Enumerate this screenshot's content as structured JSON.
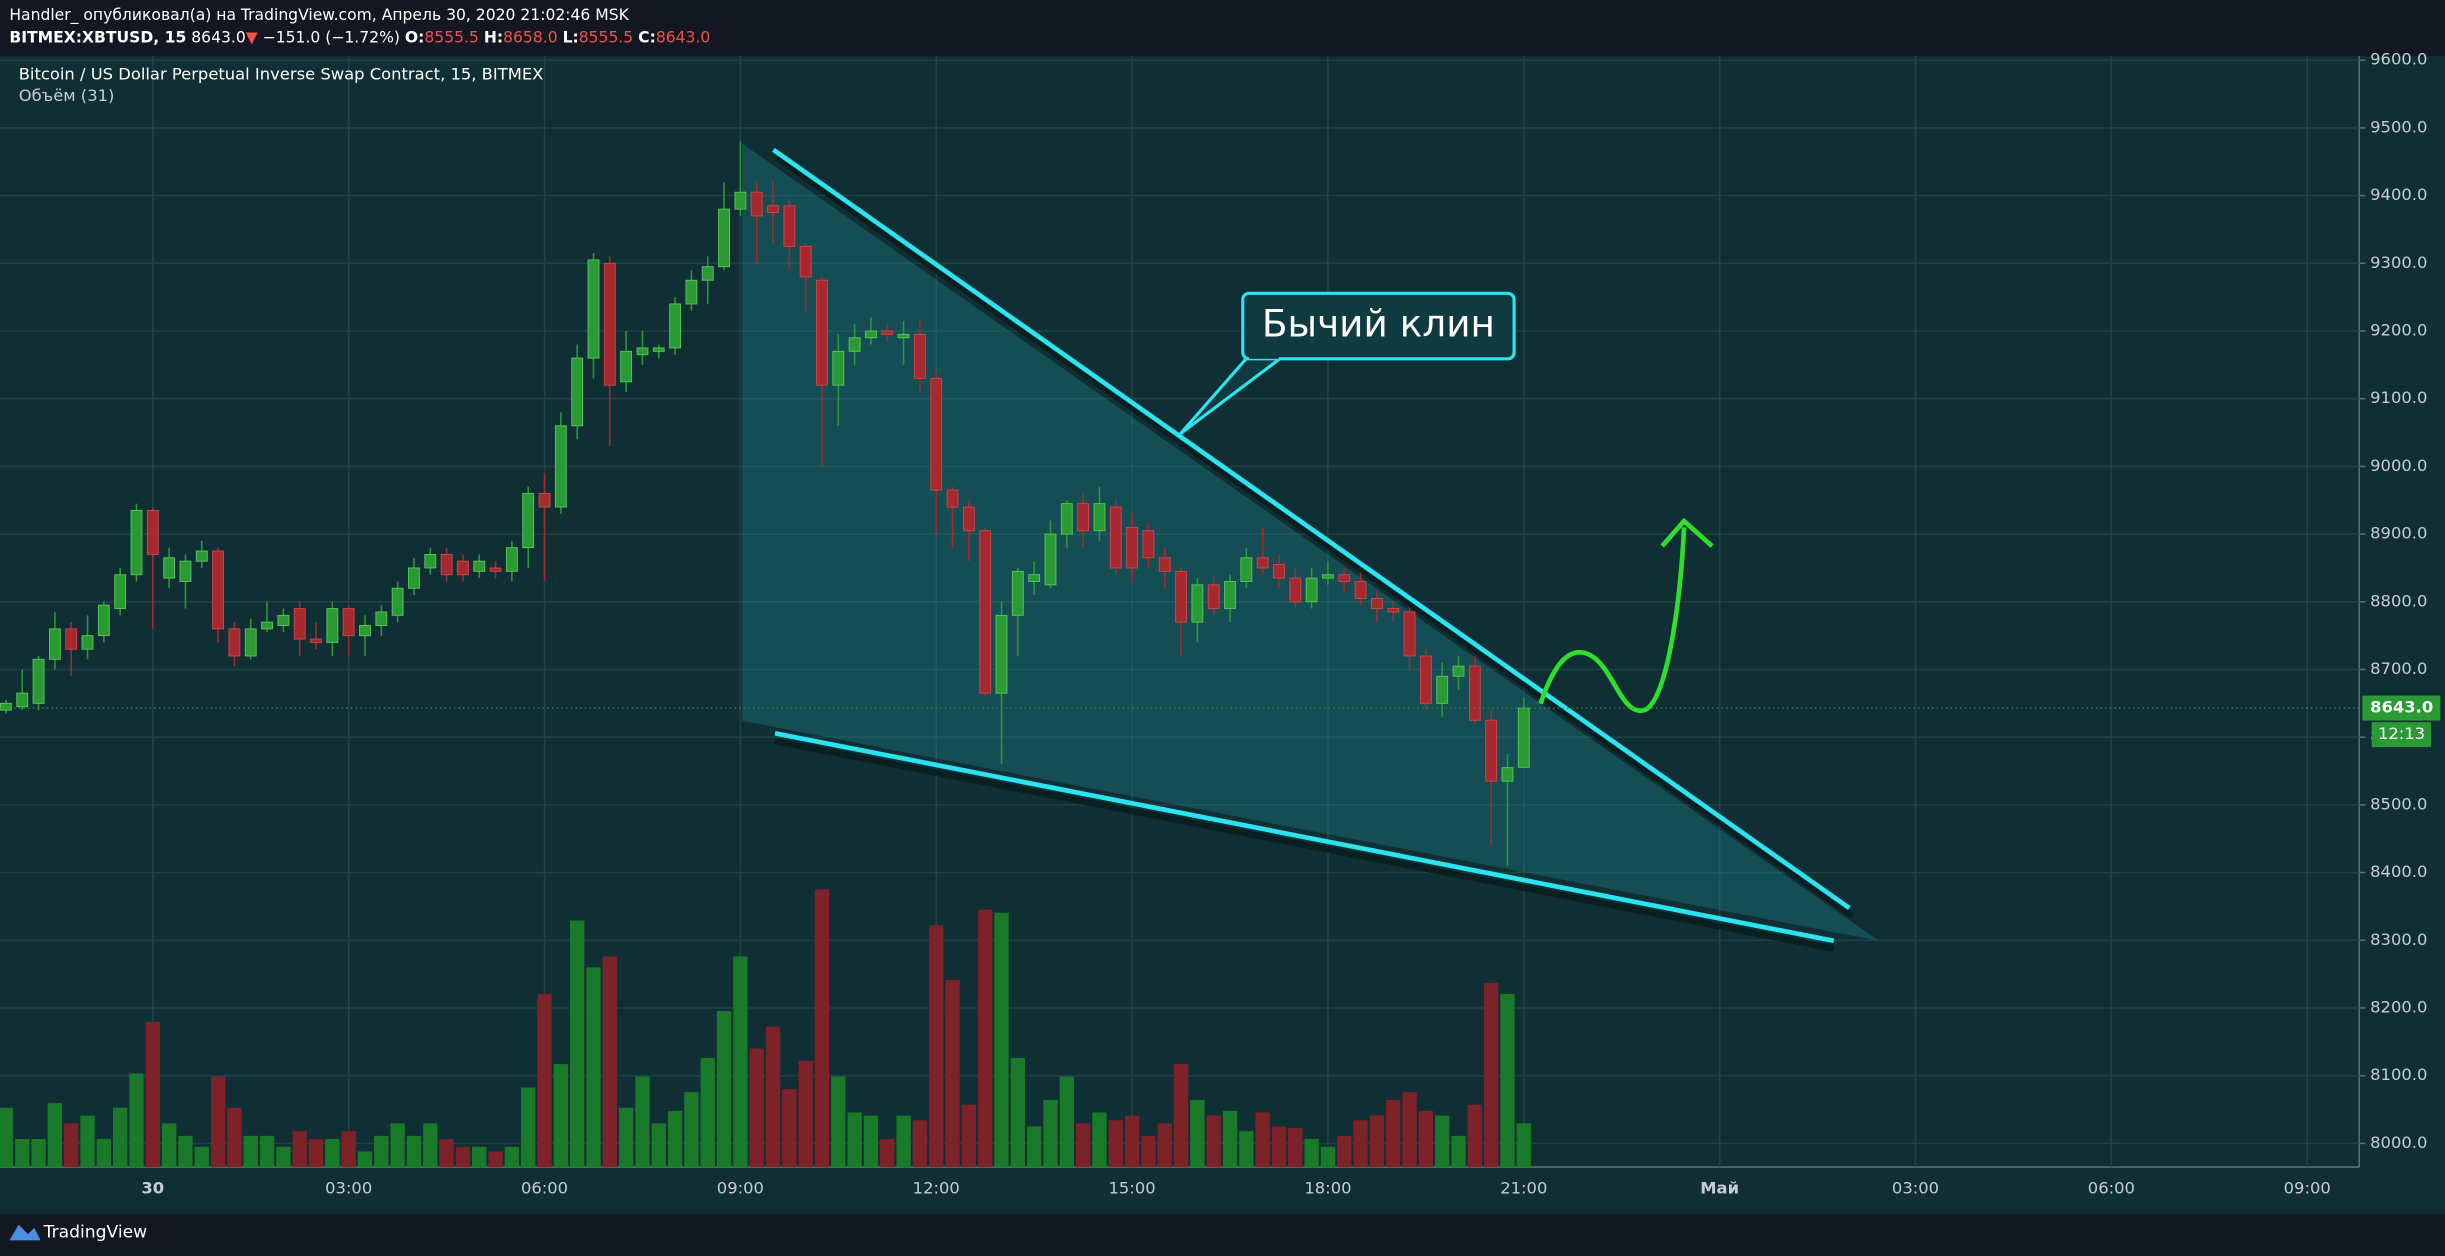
{
  "header": {
    "author_line": "Handler_ опубликовал(а) на TradingView.com, Апрель 30, 2020 21:02:46 MSK",
    "symbol": "BITMEX:XBTUSD, 15",
    "last": "8643.0",
    "direction": "▼",
    "change": "−151.0 (−1.72%)",
    "ohlc": [
      {
        "label": "O:",
        "value": "8555.5"
      },
      {
        "label": "H:",
        "value": "8658.0"
      },
      {
        "label": "L:",
        "value": "8555.5"
      },
      {
        "label": "C:",
        "value": "8643.0"
      }
    ]
  },
  "chart_data": {
    "type": "candlestick",
    "title": "Bitcoin / US Dollar Perpetual Inverse Swap Contract, 15, BITMEX",
    "subtitle": "Объём (31)",
    "annotation": "Бычий клин",
    "categories": [
      null,
      null,
      null,
      null,
      null,
      null,
      null,
      null,
      null,
      "30",
      null,
      null,
      null,
      null,
      null,
      null,
      null,
      null,
      null,
      null,
      null,
      "03:00",
      null,
      null,
      null,
      null,
      null,
      null,
      null,
      null,
      null,
      null,
      null,
      "06:00",
      null,
      null,
      null,
      null,
      null,
      null,
      null,
      null,
      null,
      null,
      null,
      "09:00",
      null,
      null,
      null,
      null,
      null,
      null,
      null,
      null,
      null,
      null,
      null,
      "12:00",
      null,
      null,
      null,
      null,
      null,
      null,
      null,
      null,
      null,
      null,
      null,
      "15:00",
      null,
      null,
      null,
      null,
      null,
      null,
      null,
      null,
      null,
      null,
      null,
      "18:00",
      null,
      null,
      null,
      null,
      null,
      null,
      null,
      null,
      null,
      null,
      null,
      "21:00",
      null,
      null,
      null,
      null,
      null,
      null,
      null,
      null,
      null,
      null,
      null,
      "Май",
      null,
      null,
      null,
      null,
      null,
      null,
      null,
      null,
      null,
      null,
      null,
      "03:00",
      null,
      null,
      null,
      null,
      null,
      null,
      null,
      null,
      null,
      null,
      null,
      "06:00",
      null,
      null,
      null,
      null,
      null,
      null,
      null,
      null,
      null,
      null,
      null,
      "09:00",
      null,
      null,
      null
    ],
    "open": [
      8640,
      8645,
      8650,
      8715,
      8760,
      8730,
      8750,
      8790,
      8840,
      8935,
      8835,
      8830,
      8860,
      8875,
      8760,
      8720,
      8760,
      8765,
      8790,
      8745,
      8740,
      8790,
      8750,
      8765,
      8780,
      8820,
      8850,
      8870,
      8860,
      8845,
      8850,
      8845,
      8880,
      8960,
      8940,
      9060,
      9160,
      9300,
      9125,
      9165,
      9170,
      9175,
      9240,
      9275,
      9295,
      9380,
      9405,
      9385,
      9385,
      9325,
      9275,
      9120,
      9170,
      9190,
      9200,
      9190,
      9195,
      9130,
      8965,
      8940,
      8905,
      8665,
      8780,
      8830,
      8825,
      8900,
      8945,
      8905,
      8940,
      8910,
      8905,
      8865,
      8845,
      8770,
      8825,
      8790,
      8830,
      8865,
      8855,
      8835,
      8800,
      8835,
      8840,
      8830,
      8805,
      8790,
      8785,
      8720,
      8650,
      8690,
      8705,
      8625,
      8535,
      8555.5,
      null,
      null,
      null,
      null,
      null,
      null,
      null,
      null,
      null,
      null,
      null,
      null,
      null,
      null,
      null,
      null,
      null,
      null,
      null,
      null,
      null,
      null,
      null,
      null,
      null,
      null,
      null,
      null,
      null,
      null,
      null,
      null,
      null,
      null,
      null,
      null,
      null,
      null,
      null,
      null,
      null,
      null,
      null,
      null,
      null,
      null,
      null,
      null,
      null,
      null,
      null
    ],
    "high": [
      8655,
      8700,
      8720,
      8785,
      8770,
      8780,
      8800,
      8850,
      8945,
      8940,
      8880,
      8870,
      8890,
      8880,
      8770,
      8775,
      8800,
      8790,
      8800,
      8770,
      8800,
      8795,
      8780,
      8795,
      8830,
      8865,
      8880,
      8880,
      8870,
      8870,
      8860,
      8890,
      8970,
      8990,
      9080,
      9180,
      9315,
      9310,
      9200,
      9200,
      9180,
      9250,
      9290,
      9310,
      9420,
      9480,
      9420,
      9420,
      9395,
      9330,
      9280,
      9195,
      9210,
      9220,
      9210,
      9215,
      9215,
      9140,
      8970,
      8950,
      8910,
      8800,
      8850,
      8860,
      8920,
      8950,
      8960,
      8970,
      8950,
      8930,
      8915,
      8880,
      8850,
      8835,
      8840,
      8840,
      8880,
      8910,
      8870,
      8850,
      8850,
      8860,
      8850,
      8845,
      8815,
      8800,
      8795,
      8730,
      8710,
      8720,
      8720,
      8640,
      8575,
      8658,
      null,
      null,
      null,
      null,
      null,
      null,
      null,
      null,
      null,
      null,
      null,
      null,
      null,
      null,
      null,
      null,
      null,
      null,
      null,
      null,
      null,
      null,
      null,
      null,
      null,
      null,
      null,
      null,
      null,
      null,
      null,
      null,
      null,
      null,
      null,
      null,
      null,
      null,
      null,
      null,
      null,
      null,
      null,
      null,
      null,
      null,
      null,
      null,
      null,
      null,
      null
    ],
    "low": [
      8635,
      8640,
      8640,
      8700,
      8690,
      8715,
      8740,
      8780,
      8830,
      8760,
      8820,
      8790,
      8850,
      8740,
      8705,
      8715,
      8755,
      8755,
      8720,
      8730,
      8720,
      8720,
      8720,
      8750,
      8770,
      8810,
      8840,
      8830,
      8830,
      8835,
      8835,
      8830,
      8850,
      8830,
      8930,
      9040,
      9130,
      9030,
      9110,
      9150,
      9160,
      9165,
      9230,
      9240,
      9290,
      9370,
      9300,
      9330,
      9290,
      9230,
      9000,
      9060,
      9150,
      9180,
      9185,
      9150,
      9110,
      8900,
      8880,
      8860,
      8660,
      8560,
      8720,
      8810,
      8820,
      8880,
      8880,
      8890,
      8840,
      8830,
      8850,
      8820,
      8720,
      8740,
      8780,
      8770,
      8820,
      8840,
      8820,
      8790,
      8790,
      8825,
      8815,
      8795,
      8770,
      8770,
      8700,
      8640,
      8630,
      8670,
      8620,
      8440,
      8410,
      8555.5,
      null,
      null,
      null,
      null,
      null,
      null,
      null,
      null,
      null,
      null,
      null,
      null,
      null,
      null,
      null,
      null,
      null,
      null,
      null,
      null,
      null,
      null,
      null,
      null,
      null,
      null,
      null,
      null,
      null,
      null,
      null,
      null,
      null,
      null,
      null,
      null,
      null,
      null,
      null,
      null,
      null,
      null,
      null,
      null,
      null,
      null,
      null,
      null,
      null,
      null,
      null
    ],
    "close": [
      8650,
      8665,
      8715,
      8760,
      8730,
      8750,
      8795,
      8840,
      8935,
      8870,
      8865,
      8860,
      8875,
      8760,
      8720,
      8760,
      8770,
      8780,
      8745,
      8740,
      8790,
      8750,
      8765,
      8785,
      8820,
      8850,
      8870,
      8840,
      8840,
      8860,
      8845,
      8880,
      8960,
      8940,
      9060,
      9160,
      9305,
      9120,
      9170,
      9175,
      9175,
      9240,
      9275,
      9295,
      9380,
      9405,
      9370,
      9375,
      9325,
      9280,
      9120,
      9170,
      9190,
      9200,
      9195,
      9195,
      9130,
      8965,
      8940,
      8905,
      8665,
      8780,
      8845,
      8840,
      8900,
      8945,
      8905,
      8945,
      8850,
      8850,
      8865,
      8845,
      8770,
      8825,
      8790,
      8830,
      8865,
      8850,
      8835,
      8800,
      8835,
      8840,
      8830,
      8805,
      8790,
      8785,
      8720,
      8650,
      8690,
      8705,
      8625,
      8535,
      8555,
      8643,
      null,
      null,
      null,
      null,
      null,
      null,
      null,
      null,
      null,
      null,
      null,
      null,
      null,
      null,
      null,
      null,
      null,
      null,
      null,
      null,
      null,
      null,
      null,
      null,
      null,
      null,
      null,
      null,
      null,
      null,
      null,
      null,
      null,
      null,
      null,
      null,
      null,
      null,
      null,
      null,
      null,
      null,
      null,
      null,
      null,
      null,
      null,
      null,
      null,
      null,
      null
    ],
    "volume": [
      38,
      18,
      18,
      41,
      28,
      33,
      18,
      38,
      60,
      93,
      28,
      20,
      13,
      58,
      38,
      20,
      20,
      13,
      23,
      18,
      18,
      23,
      10,
      20,
      28,
      20,
      28,
      18,
      13,
      13,
      10,
      13,
      51,
      111,
      66,
      158,
      128,
      135,
      38,
      58,
      28,
      36,
      48,
      70,
      100,
      135,
      76,
      90,
      50,
      68,
      178,
      58,
      35,
      33,
      18,
      33,
      30,
      155,
      120,
      40,
      165,
      163,
      70,
      26,
      43,
      58,
      28,
      35,
      30,
      33,
      20,
      28,
      66,
      43,
      33,
      36,
      23,
      35,
      26,
      25,
      18,
      13,
      20,
      30,
      33,
      43,
      48,
      36,
      33,
      20,
      40,
      118,
      111,
      28,
      null,
      null,
      null,
      null,
      null,
      null,
      null,
      null,
      null,
      null,
      null,
      null,
      null,
      null,
      null,
      null,
      null,
      null,
      null,
      null,
      null,
      null,
      null,
      null,
      null,
      null,
      null,
      null,
      null,
      null,
      null,
      null,
      null,
      null,
      null,
      null,
      null,
      null,
      null,
      null,
      null,
      null,
      null,
      null,
      null,
      null,
      null,
      null,
      null,
      null,
      null
    ],
    "volume_lim": [
      0,
      200
    ],
    "ylim": [
      7965,
      9606
    ],
    "yticks": [
      {
        "value": 8000,
        "label": "8000.0"
      },
      {
        "value": 8100,
        "label": "8100.0"
      },
      {
        "value": 8200,
        "label": "8200.0"
      },
      {
        "value": 8300,
        "label": "8300.0"
      },
      {
        "value": 8400,
        "label": "8400.0"
      },
      {
        "value": 8500,
        "label": "8500.0"
      },
      {
        "value": 8600,
        "label": "8600.0"
      },
      {
        "value": 8700,
        "label": "8700.0"
      },
      {
        "value": 8800,
        "label": "8800.0"
      },
      {
        "value": 8900,
        "label": "8900.0"
      },
      {
        "value": 9000,
        "label": "9000.0"
      },
      {
        "value": 9100,
        "label": "9100.0"
      },
      {
        "value": 9200,
        "label": "9200.0"
      },
      {
        "value": 9300,
        "label": "9300.0"
      },
      {
        "value": 9400,
        "label": "9400.0"
      },
      {
        "value": 9500,
        "label": "9500.0"
      },
      {
        "value": 9600,
        "label": "9600.0"
      }
    ],
    "last_price": {
      "value": 8643,
      "label": "8643.0"
    },
    "countdown": "12:13",
    "grid": true,
    "up_color": "#2a9a35",
    "down_color": "#a52a2f",
    "volume_up_color": "#197a2a",
    "volume_down_color": "#7c2228"
  },
  "footer": {
    "brand": "TradingView"
  }
}
